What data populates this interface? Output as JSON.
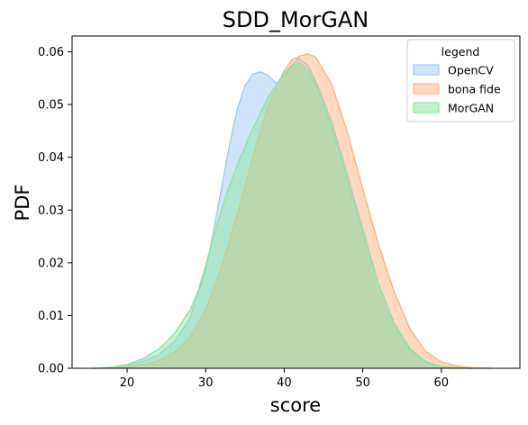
{
  "chart_data": {
    "type": "area",
    "title": "SDD_MorGAN",
    "xlabel": "score",
    "ylabel": "PDF",
    "xlim": [
      13,
      70
    ],
    "ylim": [
      0,
      0.063
    ],
    "xticks": [
      20,
      30,
      40,
      50,
      60
    ],
    "yticks": [
      0.0,
      0.01,
      0.02,
      0.03,
      0.04,
      0.05,
      0.06
    ],
    "ytick_labels": [
      "0.00",
      "0.01",
      "0.02",
      "0.03",
      "0.04",
      "0.05",
      "0.06"
    ],
    "grid": false,
    "legend": {
      "title": "legend",
      "placement": "top-right"
    },
    "series": [
      {
        "name": "OpenCV",
        "color": "#a1c9f4",
        "x": [
          15.5,
          18,
          20,
          22,
          24,
          26,
          28,
          30,
          31,
          32,
          33,
          34,
          35,
          36,
          37,
          38,
          39,
          40,
          41,
          41.8,
          43,
          44,
          46,
          48,
          50,
          52,
          54,
          56,
          58,
          60,
          62,
          64
        ],
        "y": [
          0.0,
          0.0001,
          0.0005,
          0.0013,
          0.0026,
          0.005,
          0.0095,
          0.0185,
          0.026,
          0.034,
          0.042,
          0.049,
          0.0535,
          0.0558,
          0.0562,
          0.0555,
          0.054,
          0.0555,
          0.0575,
          0.0588,
          0.0575,
          0.0545,
          0.047,
          0.037,
          0.0265,
          0.016,
          0.0085,
          0.0035,
          0.0011,
          0.0003,
          0.0001,
          0.0
        ]
      },
      {
        "name": "bona fide",
        "color": "#ffb482",
        "x": [
          17,
          20,
          22,
          24,
          26,
          28,
          30,
          32,
          34,
          36,
          38,
          40,
          41,
          42,
          43,
          44,
          46,
          48,
          50,
          52,
          54,
          56,
          58,
          60,
          62,
          64,
          66.5
        ],
        "y": [
          0.0,
          0.0002,
          0.0006,
          0.0014,
          0.003,
          0.0058,
          0.011,
          0.019,
          0.029,
          0.04,
          0.05,
          0.0565,
          0.0585,
          0.0592,
          0.0596,
          0.059,
          0.054,
          0.045,
          0.034,
          0.0235,
          0.0145,
          0.0075,
          0.0032,
          0.0012,
          0.0004,
          0.0001,
          0.0
        ]
      },
      {
        "name": "MorGAN",
        "color": "#8de5a1",
        "x": [
          16,
          18,
          20,
          22,
          24,
          26,
          28,
          29,
          30,
          31,
          32,
          33,
          34,
          35,
          36,
          38,
          40,
          41,
          42,
          43,
          44,
          46,
          48,
          50,
          52,
          54,
          56,
          58,
          60,
          62,
          64
        ],
        "y": [
          0.0,
          0.0002,
          0.0007,
          0.0018,
          0.0036,
          0.0065,
          0.011,
          0.0145,
          0.0195,
          0.025,
          0.03,
          0.0345,
          0.0385,
          0.042,
          0.0455,
          0.0515,
          0.056,
          0.0575,
          0.0578,
          0.0565,
          0.054,
          0.046,
          0.036,
          0.0255,
          0.016,
          0.0085,
          0.0038,
          0.0013,
          0.0003,
          0.0001,
          0.0
        ]
      }
    ]
  }
}
